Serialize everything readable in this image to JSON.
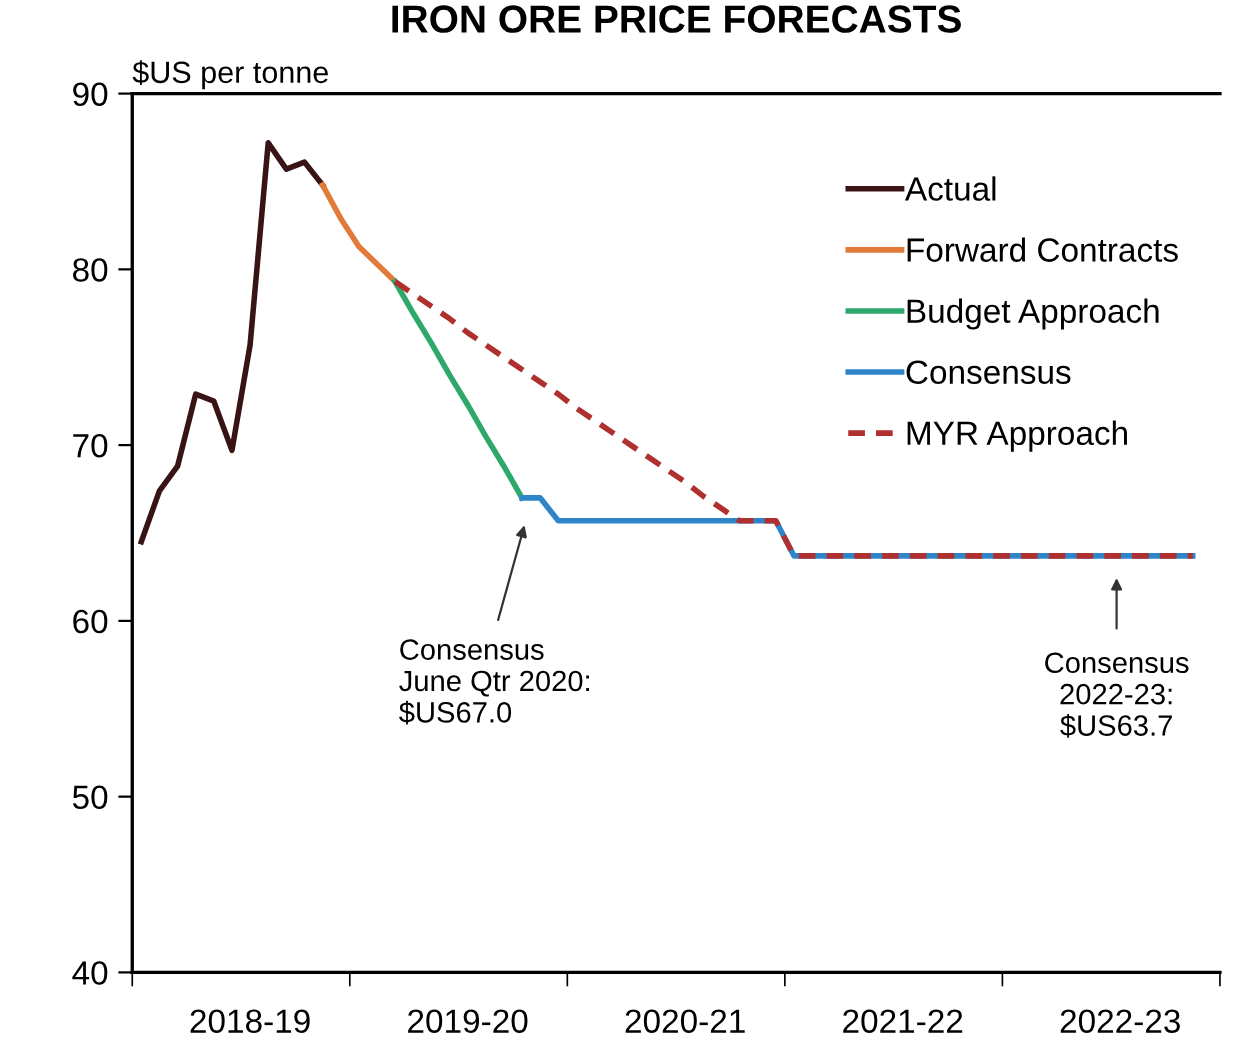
{
  "chart_data": {
    "type": "line",
    "title": "IRON ORE PRICE FORECASTS",
    "ylabel": "$US per tonne",
    "ylim": [
      40,
      90
    ],
    "yticks": [
      40,
      50,
      60,
      70,
      80,
      90
    ],
    "categories": [
      null,
      null,
      null,
      null,
      null,
      null,
      "2018-19",
      null,
      null,
      null,
      null,
      null,
      null,
      null,
      null,
      null,
      null,
      null,
      "2019-20",
      null,
      null,
      null,
      null,
      null,
      null,
      null,
      null,
      null,
      null,
      null,
      "2020-21",
      null,
      null,
      null,
      null,
      null,
      null,
      null,
      null,
      null,
      null,
      null,
      "2021-22",
      null,
      null,
      null,
      null,
      null,
      null,
      null,
      null,
      null,
      null,
      null,
      "2022-23",
      null,
      null,
      null,
      null,
      null
    ],
    "series": [
      {
        "name": "Actual",
        "color": "#3a1414",
        "values": [
          64.5,
          67.4,
          68.8,
          72.9,
          72.5,
          69.7,
          75.7,
          87.2,
          85.7,
          86.1,
          84.8,
          null,
          null,
          null,
          null,
          null,
          null,
          null,
          null,
          null,
          null,
          null,
          null,
          null,
          null,
          null,
          null,
          null,
          null,
          null,
          null,
          null,
          null,
          null,
          null,
          null,
          null,
          null,
          null,
          null,
          null,
          null,
          null,
          null,
          null,
          null,
          null,
          null,
          null,
          null,
          null,
          null,
          null,
          null,
          null,
          null,
          null,
          null,
          null,
          null
        ]
      },
      {
        "name": "Forward Contracts",
        "color": "#e07b39",
        "values": [
          null,
          null,
          null,
          null,
          null,
          null,
          null,
          null,
          null,
          null,
          84.8,
          82.9,
          81.3,
          80.3,
          79.3,
          null,
          null,
          null,
          null,
          null,
          null,
          null,
          null,
          null,
          null,
          null,
          null,
          null,
          null,
          null,
          null,
          null,
          null,
          null,
          null,
          null,
          null,
          null,
          null,
          null,
          null,
          null,
          null,
          null,
          null,
          null,
          null,
          null,
          null,
          null,
          null,
          null,
          null,
          null,
          null,
          null,
          null,
          null,
          null,
          null
        ]
      },
      {
        "name": "Budget Approach",
        "color": "#2ea86b",
        "values": [
          null,
          null,
          null,
          null,
          null,
          null,
          null,
          null,
          null,
          null,
          null,
          null,
          null,
          null,
          79.3,
          77.5,
          75.8,
          74.0,
          72.3,
          70.5,
          68.8,
          67.0,
          null,
          null,
          null,
          null,
          null,
          null,
          null,
          null,
          null,
          null,
          null,
          null,
          null,
          null,
          null,
          null,
          null,
          null,
          null,
          null,
          null,
          null,
          null,
          null,
          null,
          null,
          null,
          null,
          null,
          null,
          null,
          null,
          null,
          null,
          null,
          null,
          null,
          null
        ]
      },
      {
        "name": "Consensus",
        "color": "#2e86c8",
        "values": [
          null,
          null,
          null,
          null,
          null,
          null,
          null,
          null,
          null,
          null,
          null,
          null,
          null,
          null,
          null,
          null,
          null,
          null,
          null,
          null,
          null,
          67.0,
          67.0,
          65.7,
          65.7,
          65.7,
          65.7,
          65.7,
          65.7,
          65.7,
          65.7,
          65.7,
          65.7,
          65.7,
          65.7,
          65.7,
          63.7,
          63.7,
          63.7,
          63.7,
          63.7,
          63.7,
          63.7,
          63.7,
          63.7,
          63.7,
          63.7,
          63.7,
          63.7,
          63.7,
          63.7,
          63.7,
          63.7,
          63.7,
          63.7,
          63.7,
          63.7,
          63.7,
          63.7,
          null
        ]
      },
      {
        "name": "MYR Approach",
        "color": "#b03030",
        "line_style": "dashed",
        "values": [
          null,
          null,
          null,
          null,
          null,
          null,
          null,
          null,
          null,
          null,
          null,
          null,
          null,
          null,
          79.3,
          78.6,
          77.9,
          77.2,
          76.4,
          75.7,
          75.0,
          74.3,
          73.6,
          72.9,
          72.1,
          71.4,
          70.7,
          70.0,
          69.3,
          68.6,
          67.9,
          67.1,
          66.4,
          65.7,
          65.7,
          65.7,
          63.7,
          63.7,
          63.7,
          63.7,
          63.7,
          63.7,
          63.7,
          63.7,
          63.7,
          63.7,
          63.7,
          63.7,
          63.7,
          63.7,
          63.7,
          63.7,
          63.7,
          63.7,
          63.7,
          63.7,
          63.7,
          63.7,
          63.7,
          null
        ]
      }
    ],
    "annotations": [
      "Consensus\nJune Qtr 2020:\n$US67.0",
      "Consensus\n2022-23:\n$US63.7"
    ],
    "legend": "top right",
    "grid": false
  }
}
